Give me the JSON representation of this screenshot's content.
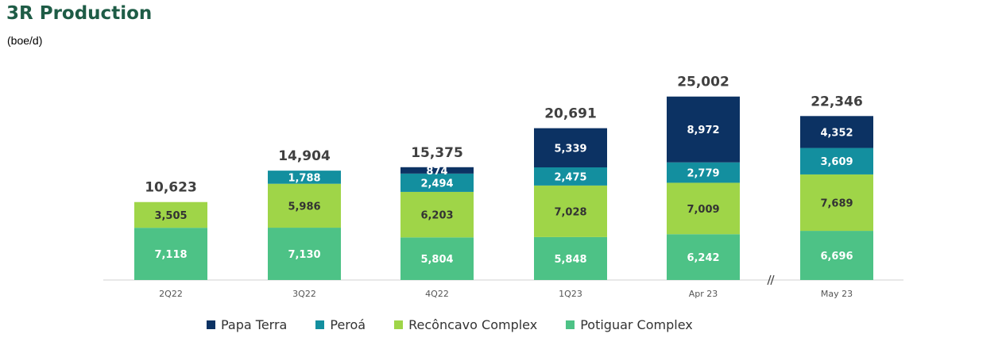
{
  "title": "3R Production",
  "unit": "(boe/d)",
  "chart_data": {
    "type": "bar",
    "stacked": true,
    "categories": [
      "2Q22",
      "3Q22",
      "4Q22",
      "1Q23",
      "Apr 23",
      "May 23"
    ],
    "series": [
      {
        "name": "Potiguar Complex",
        "color": "#4dc286",
        "values": [
          7118,
          7130,
          5804,
          5848,
          6242,
          6696
        ],
        "labels": [
          "7,118",
          "7,130",
          "5,804",
          "5,848",
          "6,242",
          "6,696"
        ]
      },
      {
        "name": "Recôncavo Complex",
        "color": "#9fd548",
        "values": [
          3505,
          5986,
          6203,
          7028,
          7009,
          7689
        ],
        "labels": [
          "3,505",
          "5,986",
          "6,203",
          "7,028",
          "7,009",
          "7,689"
        ]
      },
      {
        "name": "Peroá",
        "color": "#138f9f",
        "values": [
          0,
          1788,
          2494,
          2475,
          2779,
          3609
        ],
        "labels": [
          "",
          "1,788",
          "2,494",
          "2,475",
          "2,779",
          "3,609"
        ]
      },
      {
        "name": "Papa Terra",
        "color": "#0c3263",
        "values": [
          0,
          0,
          874,
          5339,
          8972,
          4352
        ],
        "labels": [
          "",
          "",
          "874",
          "5,339",
          "8,972",
          "4,352"
        ]
      }
    ],
    "totals": [
      10623,
      14904,
      15375,
      20691,
      25002,
      22346
    ],
    "total_labels": [
      "10,623",
      "14,904",
      "15,375",
      "20,691",
      "25,002",
      "22,346"
    ],
    "axis_break_between": [
      "Apr 23",
      "May 23"
    ],
    "legend_position": "bottom",
    "legend": [
      "Papa Terra",
      "Peroá",
      "Recôncavo Complex",
      "Potiguar Complex"
    ],
    "grid": false
  }
}
